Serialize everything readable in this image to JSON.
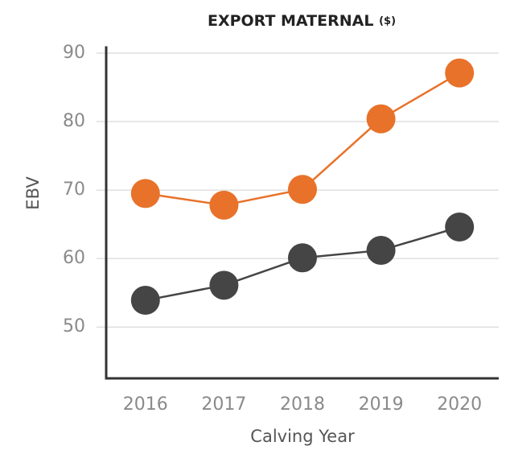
{
  "chart_data": {
    "type": "line",
    "title": "EXPORT MATERNAL",
    "title_unit": "($)",
    "xlabel": "Calving Year",
    "ylabel": "EBV",
    "categories": [
      "2016",
      "2017",
      "2018",
      "2019",
      "2020"
    ],
    "series": [
      {
        "color": "#e8722a",
        "values": [
          69.5,
          67.8,
          70.1,
          80.4,
          87.1
        ]
      },
      {
        "color": "#454545",
        "values": [
          53.9,
          56.1,
          60.1,
          61.2,
          64.6
        ]
      }
    ],
    "ylim": [
      42.5,
      91
    ],
    "yticks": [
      50,
      60,
      70,
      80,
      90
    ],
    "grid": true
  }
}
